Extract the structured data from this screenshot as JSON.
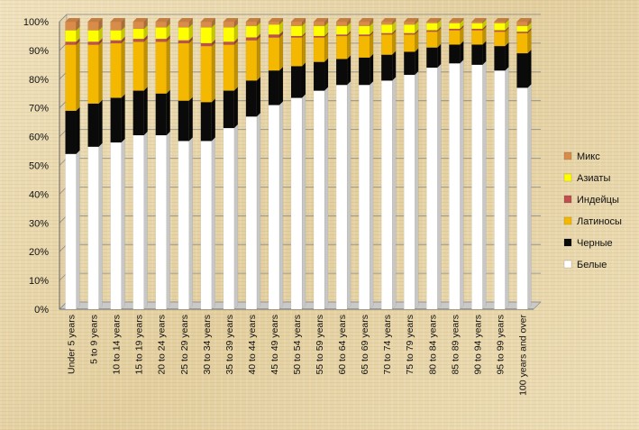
{
  "chart_data": {
    "type": "bar",
    "stacked": true,
    "percent_stacked": true,
    "grid": true,
    "legend_position": "right",
    "ylim": [
      0,
      100
    ],
    "y_ticks": [
      "0%",
      "10%",
      "20%",
      "30%",
      "40%",
      "50%",
      "60%",
      "70%",
      "80%",
      "90%",
      "100%"
    ],
    "categories": [
      "Under 5 years",
      "5 to 9 years",
      "10 to 14 years",
      "15 to 19 years",
      "20 to 24 years",
      "25 to 29 years",
      "30 to 34 years",
      "35 to 39 years",
      "40 to 44 years",
      "45 to 49 years",
      "50 to 54 years",
      "55 to 59 years",
      "60 to 64 years",
      "65 to 69 years",
      "70 to 74 years",
      "75 to 79 years",
      "80 to 84 years",
      "85 to 89 years",
      "90 to 94 years",
      "95 to 99 years",
      "100 years and over"
    ],
    "series": [
      {
        "name": "Белые",
        "color": "#ffffff",
        "values": [
          54,
          56.5,
          58,
          60.5,
          60.5,
          58.5,
          58.5,
          63,
          67,
          71,
          73.5,
          76,
          78,
          78,
          79.5,
          81.5,
          84,
          85.5,
          85,
          83,
          77
        ]
      },
      {
        "name": "Черные",
        "color": "#0a0a0a",
        "values": [
          15,
          15,
          15.5,
          15.5,
          14.5,
          14,
          13.5,
          13,
          12.5,
          12,
          11,
          10,
          9,
          9.5,
          9,
          8,
          7,
          6.5,
          7,
          8.5,
          12
        ]
      },
      {
        "name": "Латиносы",
        "color": "#f5b800",
        "values": [
          23,
          20.5,
          19,
          17,
          18,
          20,
          19.5,
          16,
          14,
          11.5,
          10,
          8.5,
          8,
          7.5,
          7,
          6,
          5.5,
          5,
          5,
          5,
          7
        ]
      },
      {
        "name": "Индейцы",
        "color": "#c0504d",
        "values": [
          1,
          1,
          1,
          1,
          1,
          1,
          1,
          1,
          1,
          1,
          0.5,
          0.5,
          0.5,
          0.5,
          0.5,
          0.5,
          0.5,
          0.5,
          0.5,
          0.5,
          0.5
        ]
      },
      {
        "name": "Азиаты",
        "color": "#ffff00",
        "values": [
          4,
          4,
          3.5,
          3.5,
          4,
          4.5,
          5.5,
          5,
          4,
          3.5,
          3.5,
          3.5,
          3,
          3,
          3,
          3,
          2.5,
          2,
          2,
          2.5,
          2
        ]
      },
      {
        "name": "Микс",
        "color": "#d98c4a",
        "values": [
          3,
          3,
          3,
          2.5,
          2,
          2,
          2,
          2,
          1.5,
          1,
          1.5,
          1.5,
          1.5,
          1.5,
          1,
          1,
          0.5,
          0.5,
          0.5,
          0.5,
          1.5
        ]
      }
    ]
  }
}
